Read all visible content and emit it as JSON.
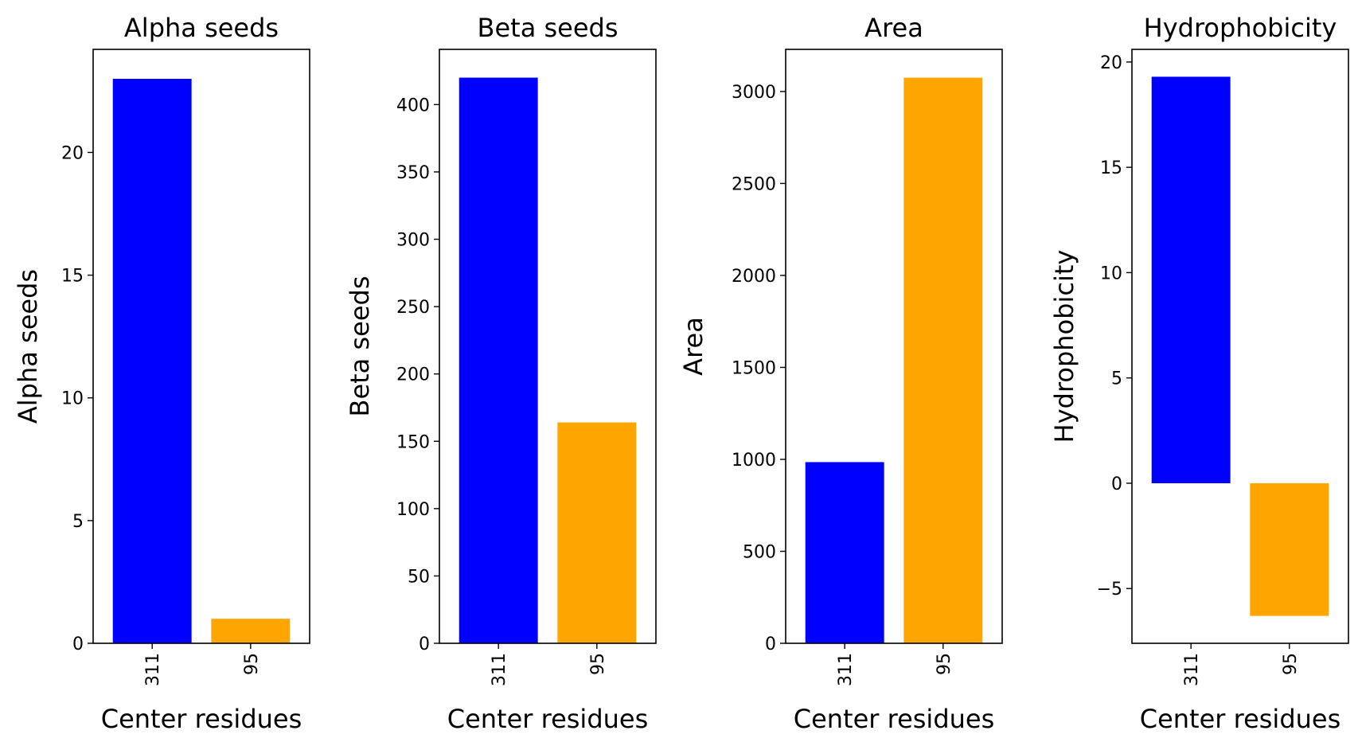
{
  "chart_data": [
    {
      "type": "bar",
      "title": "Alpha seeds",
      "xlabel": "Center residues",
      "ylabel": "Alpha seeds",
      "categories": [
        "311",
        "95"
      ],
      "values": [
        23,
        1
      ],
      "colors": [
        "#0000ff",
        "#ffa500"
      ],
      "ylim": [
        0,
        24.2
      ],
      "yticks": [
        0,
        5,
        10,
        15,
        20
      ],
      "ytick_labels": [
        "0",
        "5",
        "10",
        "15",
        "20"
      ],
      "grid": false
    },
    {
      "type": "bar",
      "title": "Beta seeds",
      "xlabel": "Center residues",
      "ylabel": "Beta seeds",
      "categories": [
        "311",
        "95"
      ],
      "values": [
        420,
        164
      ],
      "colors": [
        "#0000ff",
        "#ffa500"
      ],
      "ylim": [
        0,
        441
      ],
      "yticks": [
        0,
        50,
        100,
        150,
        200,
        250,
        300,
        350,
        400
      ],
      "ytick_labels": [
        "0",
        "50",
        "100",
        "150",
        "200",
        "250",
        "300",
        "350",
        "400"
      ],
      "grid": false
    },
    {
      "type": "bar",
      "title": "Area",
      "xlabel": "Center residues",
      "ylabel": "Area",
      "categories": [
        "311",
        "95"
      ],
      "values": [
        985,
        3075
      ],
      "colors": [
        "#0000ff",
        "#ffa500"
      ],
      "ylim": [
        0,
        3229
      ],
      "yticks": [
        0,
        500,
        1000,
        1500,
        2000,
        2500,
        3000
      ],
      "ytick_labels": [
        "0",
        "500",
        "1000",
        "1500",
        "2000",
        "2500",
        "3000"
      ],
      "grid": false
    },
    {
      "type": "bar",
      "title": "Hydrophobicity",
      "xlabel": "Center residues",
      "ylabel": "Hydrophobicity",
      "categories": [
        "311",
        "95"
      ],
      "values": [
        19.3,
        -6.3
      ],
      "colors": [
        "#0000ff",
        "#ffa500"
      ],
      "ylim": [
        -7.6,
        20.6
      ],
      "yticks": [
        -5,
        0,
        5,
        10,
        15,
        20
      ],
      "ytick_labels": [
        "−5",
        "0",
        "5",
        "10",
        "15",
        "20"
      ],
      "grid": false
    }
  ]
}
